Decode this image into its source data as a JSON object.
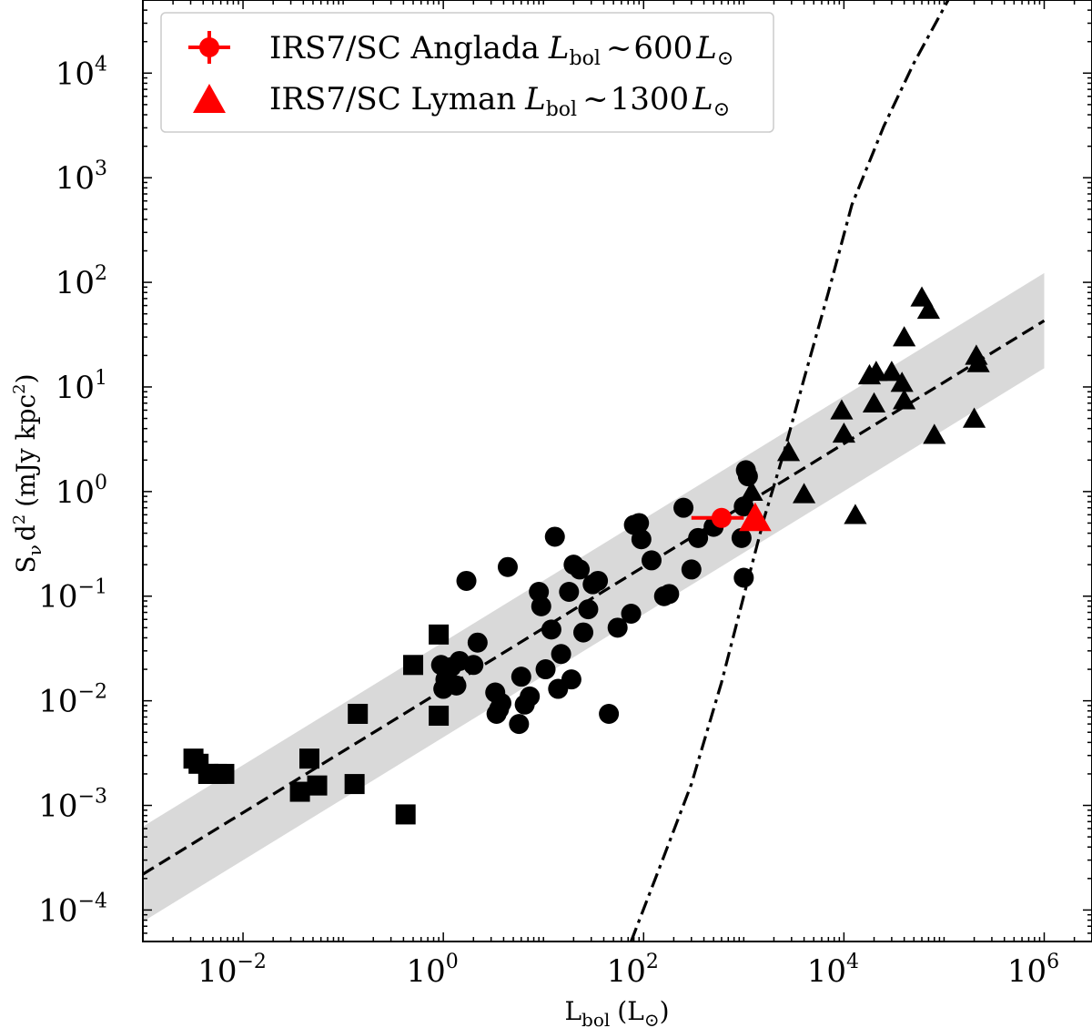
{
  "chart_data": {
    "type": "scatter",
    "xscale": "log",
    "yscale": "log",
    "xlim": [
      0.001,
      3000000
    ],
    "ylim": [
      5e-05,
      50000
    ],
    "x_tick_exponents": [
      -2,
      0,
      2,
      4,
      6
    ],
    "y_tick_exponents": [
      -4,
      -3,
      -2,
      -1,
      0,
      1,
      2,
      3,
      4
    ],
    "tick_base": "10",
    "xlabel": {
      "main": "L",
      "sub": "bol",
      "units": "(L",
      "units_sym": "⊙",
      "units_close": ")"
    },
    "ylabel": {
      "main": "S",
      "sub": "ν",
      "rest": "d",
      "sup": "2",
      "units": "(mJy kpc",
      "units_sup": "2",
      "units_close": ")"
    },
    "fit": {
      "name": "power-law fit",
      "style": "dashed",
      "x_range": [
        0.001,
        1000000
      ],
      "y_at_range": [
        0.00022,
        43
      ],
      "band_factor": 2.85
    },
    "threshold_curve": {
      "name": "ionization threshold",
      "style": "dash-dot",
      "x": [
        75,
        150,
        300,
        600,
        1000,
        1600,
        2500,
        4000,
        7000,
        12000,
        25000,
        50000,
        110000
      ],
      "y": [
        5e-05,
        0.00028,
        0.0016,
        0.015,
        0.1,
        0.56,
        2.3,
        12,
        80,
        550,
        3100,
        12500,
        50000
      ]
    },
    "series": [
      {
        "name": "squares",
        "marker": "square",
        "color": "#000000",
        "x": [
          0.0032,
          0.0036,
          0.0045,
          0.0055,
          0.0065,
          0.0045,
          0.037,
          0.046,
          0.055,
          0.13,
          0.14,
          0.42,
          0.5,
          0.9,
          0.9
        ],
        "y": [
          0.0028,
          0.0025,
          0.002,
          0.002,
          0.002,
          0.002,
          0.00135,
          0.0028,
          0.00155,
          0.0016,
          0.0075,
          0.00082,
          0.022,
          0.0072,
          0.043
        ]
      },
      {
        "name": "circles",
        "marker": "circle",
        "color": "#000000",
        "x": [
          0.95,
          1.0,
          1.05,
          1.2,
          1.35,
          1.45,
          1.7,
          2.0,
          2.2,
          3.3,
          3.4,
          3.6,
          3.8,
          4.4,
          5.7,
          6.0,
          6.5,
          7.3,
          9.0,
          9.5,
          10.5,
          12.0,
          13.0,
          14.0,
          15.0,
          18.0,
          19.0,
          20.0,
          23.0,
          25.0,
          28.0,
          31.0,
          35.0,
          45.0,
          55.0,
          75.0,
          80.0,
          90.0,
          95.0,
          120.0,
          160.0,
          180.0,
          250.0,
          300.0,
          350.0,
          500.0,
          950.0,
          1000.0,
          1000.0,
          1050.0,
          1100.0
        ],
        "y": [
          0.022,
          0.013,
          0.016,
          0.021,
          0.014,
          0.024,
          0.14,
          0.022,
          0.036,
          0.012,
          0.0075,
          0.0083,
          0.0095,
          0.19,
          0.006,
          0.017,
          0.0092,
          0.011,
          0.11,
          0.08,
          0.02,
          0.048,
          0.37,
          0.013,
          0.028,
          0.11,
          0.016,
          0.2,
          0.18,
          0.045,
          0.075,
          0.13,
          0.14,
          0.0075,
          0.05,
          0.068,
          0.48,
          0.5,
          0.35,
          0.22,
          0.1,
          0.105,
          0.7,
          0.18,
          0.36,
          0.46,
          0.36,
          0.15,
          0.72,
          1.6,
          1.4
        ]
      },
      {
        "name": "triangles",
        "marker": "triangle",
        "color": "#000000",
        "x": [
          1200,
          2800,
          4000,
          9500,
          10000,
          13000,
          18000,
          20000,
          21000,
          30000,
          38000,
          40000,
          40000,
          60000,
          70000,
          80000,
          200000,
          210000,
          220000
        ],
        "y": [
          1.0,
          2.4,
          0.95,
          6.0,
          3.6,
          0.6,
          13.0,
          7.0,
          14.0,
          14.0,
          11.0,
          30.0,
          7.5,
          72.0,
          55.0,
          3.5,
          5.0,
          20.0,
          17.0
        ]
      },
      {
        "name": "IRS7/SC Anglada",
        "marker": "circle",
        "color": "#ff0000",
        "x": [
          600
        ],
        "y": [
          0.56
        ],
        "xerr": [
          [
            300,
            1000
          ]
        ]
      },
      {
        "name": "IRS7/SC Lyman",
        "marker": "triangle",
        "color": "#ff0000",
        "x": [
          1300
        ],
        "y": [
          0.56
        ]
      }
    ],
    "legend": {
      "position": "top-left",
      "entries": [
        {
          "label": "IRS7/SC Anglada",
          "math_prefix": "L",
          "math_sub": "bol",
          "relation": "~",
          "value": "600",
          "unit": "L",
          "unit_sub": "⊙",
          "marker": "circle-errorbar",
          "color": "#ff0000"
        },
        {
          "label": "IRS7/SC Lyman",
          "math_prefix": "L",
          "math_sub": "bol",
          "relation": "~",
          "value": "1300",
          "unit": "L",
          "unit_sub": "⊙",
          "marker": "triangle",
          "color": "#ff0000"
        }
      ]
    }
  }
}
